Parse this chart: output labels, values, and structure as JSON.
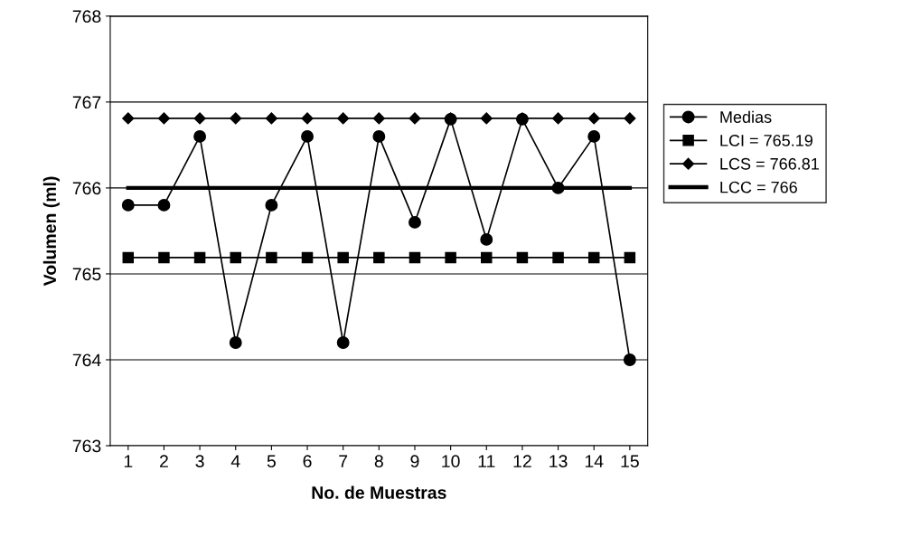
{
  "chart_data": {
    "type": "line",
    "categories": [
      "1",
      "2",
      "3",
      "4",
      "5",
      "6",
      "7",
      "8",
      "9",
      "10",
      "11",
      "12",
      "13",
      "14",
      "15"
    ],
    "series": [
      {
        "name": "Medias",
        "color": "#000000",
        "marker": "circle",
        "values": [
          765.8,
          765.8,
          766.6,
          764.2,
          765.8,
          766.6,
          764.2,
          766.6,
          765.6,
          766.8,
          765.4,
          766.8,
          766.0,
          766.6,
          764.0
        ]
      },
      {
        "name": "LCI = 765.19",
        "color": "#000000",
        "marker": "square",
        "values": [
          765.19,
          765.19,
          765.19,
          765.19,
          765.19,
          765.19,
          765.19,
          765.19,
          765.19,
          765.19,
          765.19,
          765.19,
          765.19,
          765.19,
          765.19
        ]
      },
      {
        "name": "LCS = 766.81",
        "color": "#000000",
        "marker": "diamond",
        "values": [
          766.81,
          766.81,
          766.81,
          766.81,
          766.81,
          766.81,
          766.81,
          766.81,
          766.81,
          766.81,
          766.81,
          766.81,
          766.81,
          766.81,
          766.81
        ]
      },
      {
        "name": "LCC = 766",
        "color": "#000000",
        "marker": "none",
        "values": [
          766,
          766,
          766,
          766,
          766,
          766,
          766,
          766,
          766,
          766,
          766,
          766,
          766,
          766,
          766
        ]
      }
    ],
    "xlabel": "No. de Muestras",
    "ylabel": "Volumen (ml)",
    "ylim": [
      763,
      768
    ],
    "yticks": [
      763,
      764,
      765,
      766,
      767,
      768
    ],
    "grid": "y",
    "legend": "right",
    "line_style": "solid"
  }
}
